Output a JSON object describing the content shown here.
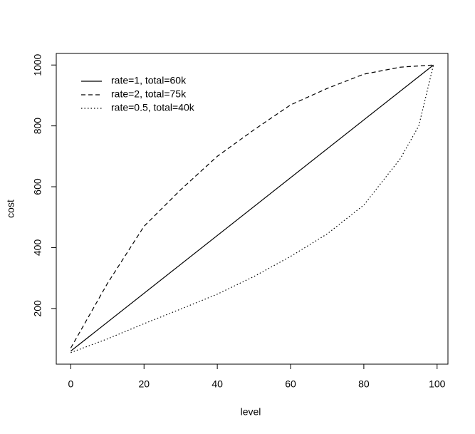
{
  "chart_data": {
    "type": "line",
    "xlabel": "level",
    "ylabel": "cost",
    "xlim": [
      -3.96,
      102.96
    ],
    "ylim": [
      17,
      1038
    ],
    "xticks": [
      0,
      20,
      40,
      60,
      80,
      100
    ],
    "yticks": [
      200,
      400,
      600,
      800,
      1000
    ],
    "legend": "top-left",
    "series": [
      {
        "name": "rate=1, total=60k",
        "color": "#000000",
        "linestyle": "solid",
        "x": [
          0,
          99
        ],
        "values": [
          60,
          1000
        ]
      },
      {
        "name": "rate=2, total=75k",
        "color": "#000000",
        "linestyle": "dashed",
        "x": [
          0,
          10,
          20,
          30,
          40,
          50,
          60,
          70,
          80,
          90,
          99
        ],
        "values": [
          70,
          282,
          470,
          590,
          700,
          787,
          869,
          923,
          970,
          993,
          1000
        ]
      },
      {
        "name": "rate=0.5, total=40k",
        "color": "#000000",
        "linestyle": "dotted",
        "x": [
          0,
          10,
          20,
          30,
          40,
          50,
          60,
          70,
          80,
          90,
          95,
          99
        ],
        "values": [
          55,
          100,
          150,
          198,
          247,
          305,
          371,
          445,
          540,
          693,
          800,
          1000
        ]
      }
    ]
  }
}
